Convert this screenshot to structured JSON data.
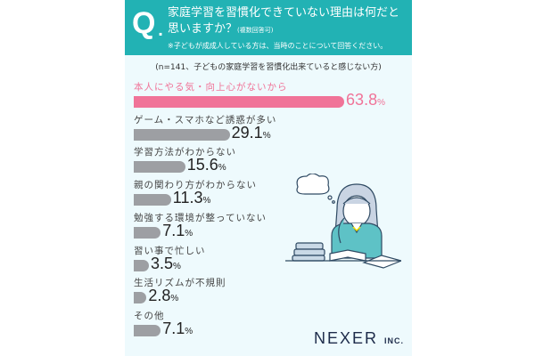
{
  "header": {
    "q_mark": "Q",
    "q_dot": ".",
    "question_line1": "家庭学習を習慣化できていない理由は何だと",
    "question_line2": "思いますか？",
    "question_sub": "(複数回答可)",
    "note": "※子どもが成成人している方は、当時のことについて回答ください。"
  },
  "sample_note": "(n=141、子どもの家庭学習を習慣化出来ていると感じない方)",
  "logo": {
    "name": "NEXER",
    "suffix": "INC."
  },
  "colors": {
    "header": "#22b2b4",
    "highlight": "#f07398",
    "bar": "#9d9fa3",
    "background": "#eefafd"
  },
  "illustration": "student-thinking-at-desk",
  "chart_data": {
    "type": "bar",
    "orientation": "horizontal",
    "unit": "%",
    "categories": [
      "本人にやる気・向上心がないから",
      "ゲーム・スマホなど誘惑が多い",
      "学習方法がわからない",
      "親の関わり方がわからない",
      "勉強する環境が整っていない",
      "習い事で忙しい",
      "生活リズムが不規則",
      "その他"
    ],
    "values": [
      63.8,
      29.1,
      15.6,
      11.3,
      7.1,
      3.5,
      2.8,
      7.1
    ],
    "value_labels": [
      "63.8",
      "29.1",
      "15.6",
      "11.3",
      "7.1",
      "3.5",
      "2.8",
      "7.1"
    ],
    "highlight_index": 0
  }
}
